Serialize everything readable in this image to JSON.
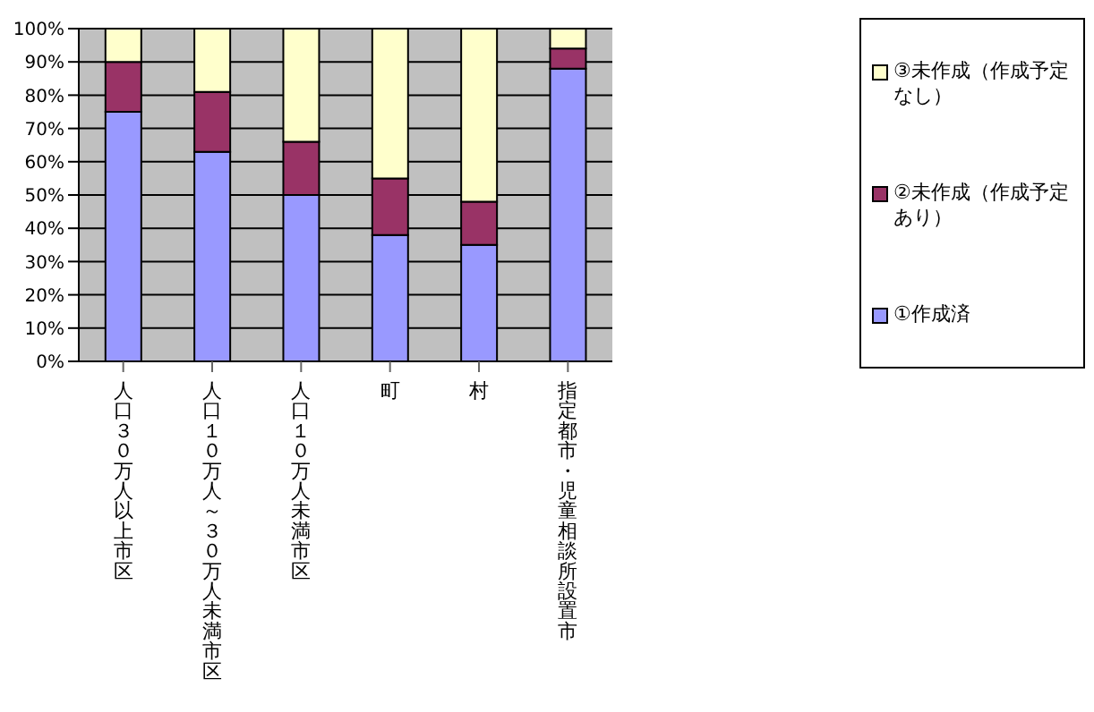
{
  "chart_data": {
    "type": "bar",
    "stacked": true,
    "categories": [
      "人口３０万人以上市区",
      "人口１０万人～３０万人未満市区",
      "人口１０万人未満市区",
      "町",
      "村",
      "指定都市・児童相談所設置市"
    ],
    "series": [
      {
        "name": "①作成済",
        "color": "#9999ff",
        "values": [
          75,
          63,
          50,
          38,
          35,
          88
        ]
      },
      {
        "name": "②未作成（作成予定あり）",
        "color": "#993366",
        "values": [
          15,
          18,
          16,
          17,
          13,
          6
        ]
      },
      {
        "name": "③未作成（作成予定なし）",
        "color": "#ffffcc",
        "values": [
          10,
          19,
          34,
          45,
          52,
          6
        ]
      }
    ],
    "ylim": [
      0,
      100
    ],
    "yticks": [
      {
        "value": 0,
        "label": "0%"
      },
      {
        "value": 10,
        "label": "10%"
      },
      {
        "value": 20,
        "label": "20%"
      },
      {
        "value": 30,
        "label": "30%"
      },
      {
        "value": 40,
        "label": "40%"
      },
      {
        "value": 50,
        "label": "50%"
      },
      {
        "value": 60,
        "label": "60%"
      },
      {
        "value": 70,
        "label": "70%"
      },
      {
        "value": 80,
        "label": "80%"
      },
      {
        "value": 90,
        "label": "90%"
      },
      {
        "value": 100,
        "label": "100%"
      }
    ],
    "grid": "y",
    "legend": "right"
  }
}
